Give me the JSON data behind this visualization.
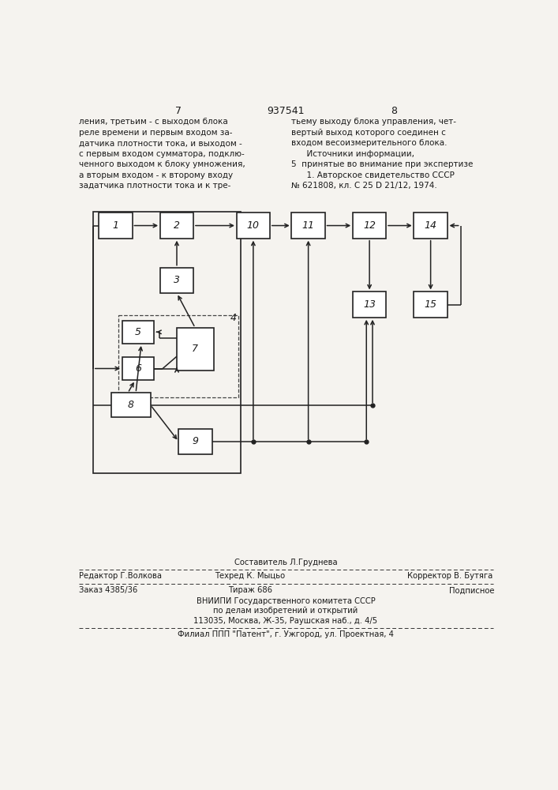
{
  "bg_color": "#f5f3ef",
  "text_color": "#1a1a1a",
  "header": {
    "left_num": "7",
    "center_num": "937541",
    "right_num": "8"
  },
  "top_text_left": [
    "ления, третьим - с выходом блока",
    "реле времени и первым входом за-",
    "датчика плотности тока, и выходом -",
    "с первым входом сумматора, подклю-",
    "ченного выходом к блоку умножения,",
    "а вторым входом - к второму входу",
    "задатчика плотности тока и к тре-"
  ],
  "top_text_right": [
    "тьему выходу блока управления, чет-",
    "вертый выход которого соединен с",
    "входом весоизмерительного блока.",
    "      Источники информации,",
    "5  принятые во внимание при экспертизе",
    "      1. Авторское свидетельство СССР",
    "№ 621808, кл. С 25 D 21/12, 1974."
  ],
  "footer_line1_center": "Составитель Л.Груднева",
  "footer_line2_left": "Редактор Г.Волкова",
  "footer_line2_center": "Техред К. Мыцьо",
  "footer_line2_right": "Корректор В. Бутяга",
  "footer_line3_left": "Заказ 4385/36",
  "footer_line3_center": "Тираж 686",
  "footer_line3_right": "Подписное",
  "footer_line4": "ВНИИПИ Государственного комитета СССР",
  "footer_line5": "по делам изобретений и открытий",
  "footer_line6": "113035, Москва, Ж-35, Раушская наб., д. 4/5",
  "footer_line7": "Филиал ППП \"Патент\", г. Ужгород, ул. Проектная, 4"
}
